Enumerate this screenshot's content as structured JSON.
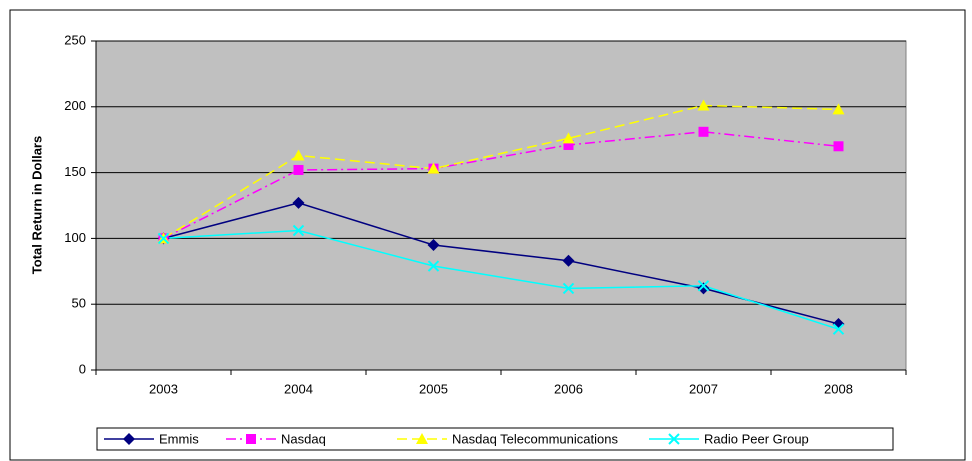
{
  "chart_data": {
    "type": "line",
    "ylabel": "Total Return in Dollars",
    "categories": [
      "2003",
      "2004",
      "2005",
      "2006",
      "2007",
      "2008"
    ],
    "series": [
      {
        "name": "Emmis",
        "color": "#000080",
        "marker": "diamond",
        "dash": "solid",
        "values": [
          100,
          127,
          95,
          83,
          62,
          35
        ]
      },
      {
        "name": "Nasdaq",
        "color": "#ff00ff",
        "marker": "square",
        "dash": "dashdot",
        "values": [
          100,
          152,
          153,
          171,
          181,
          170
        ]
      },
      {
        "name": "Nasdaq Telecommunications",
        "color": "#ffff00",
        "marker": "triangle",
        "dash": "dashed",
        "values": [
          100,
          163,
          153,
          176,
          201,
          198
        ]
      },
      {
        "name": "Radio Peer Group",
        "color": "#00ffff",
        "marker": "x",
        "dash": "solid",
        "values": [
          100,
          106,
          79,
          62,
          64,
          31
        ]
      }
    ],
    "ylim": [
      0,
      250
    ],
    "yticks": [
      0,
      50,
      100,
      150,
      200,
      250
    ],
    "grid": true,
    "legend": "bottom"
  }
}
